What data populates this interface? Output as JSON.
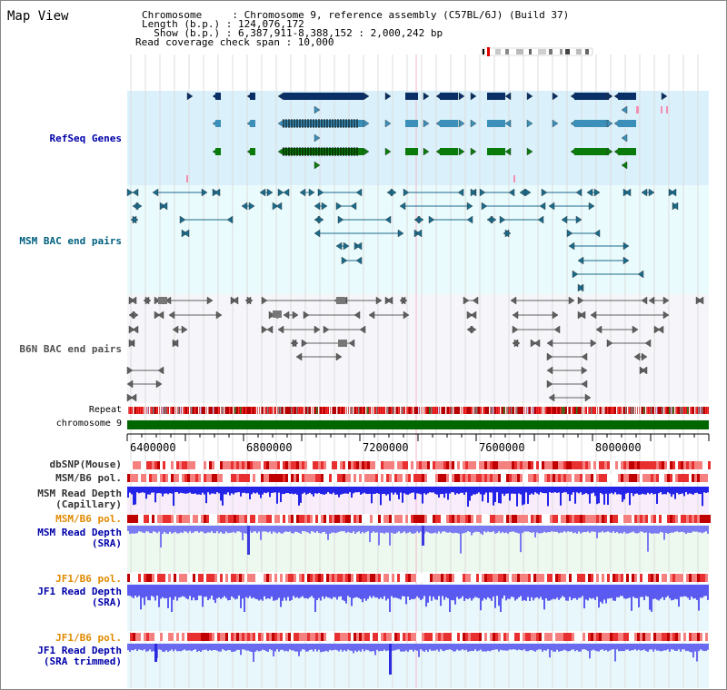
{
  "view_title": "Map View",
  "info": {
    "chromosome_line": "Chromosome     : Chromosome 9, reference assembly (C57BL/6J) (Build 37)",
    "length_line": "Length (b.p.) : 124,076,172",
    "show_line": "  Show (b.p.) : 6,387,911-8,388,152 : 2,000,242 bp",
    "coverage_line": "Read coverage check span : 10,000"
  },
  "tracks": {
    "refseq": "RefSeq Genes",
    "msm_bac": "MSM BAC end pairs",
    "b6n_bac": "B6N BAC end pairs",
    "repeat": "Repeat",
    "chromosome": "chromosome 9",
    "dbsnp": "dbSNP(Mouse)",
    "msm_b6_pol_1": "MSM/B6 pol.",
    "msm_depth_cap_1": "MSM Read Depth",
    "msm_depth_cap_2": "(Capillary)",
    "msm_b6_pol_2": "MSM/B6 pol.",
    "msm_depth_sra_1": "MSM Read Depth",
    "msm_depth_sra_2": "(SRA)",
    "jf1_b6_pol_1": "JF1/B6 pol.",
    "jf1_depth_sra_1": "JF1 Read Depth",
    "jf1_depth_sra_2": "(SRA)",
    "jf1_b6_pol_2": "JF1/B6 pol.",
    "jf1_depth_trim_1": "JF1 Read Depth",
    "jf1_depth_trim_2": "(SRA trimmed)"
  },
  "axis_ticks": [
    "6400000",
    "6800000",
    "7200000",
    "7600000",
    "8000000"
  ],
  "colors": {
    "refseq_dark": "#0a2f66",
    "refseq_mid": "#3b8fb8",
    "refseq_green": "#0a7a0a",
    "msm_bac": "#1a6a8a",
    "b6n_bac": "#606060",
    "chromosome": "#006600",
    "depth": "#2a2ae0",
    "pol": "#e83030"
  }
}
